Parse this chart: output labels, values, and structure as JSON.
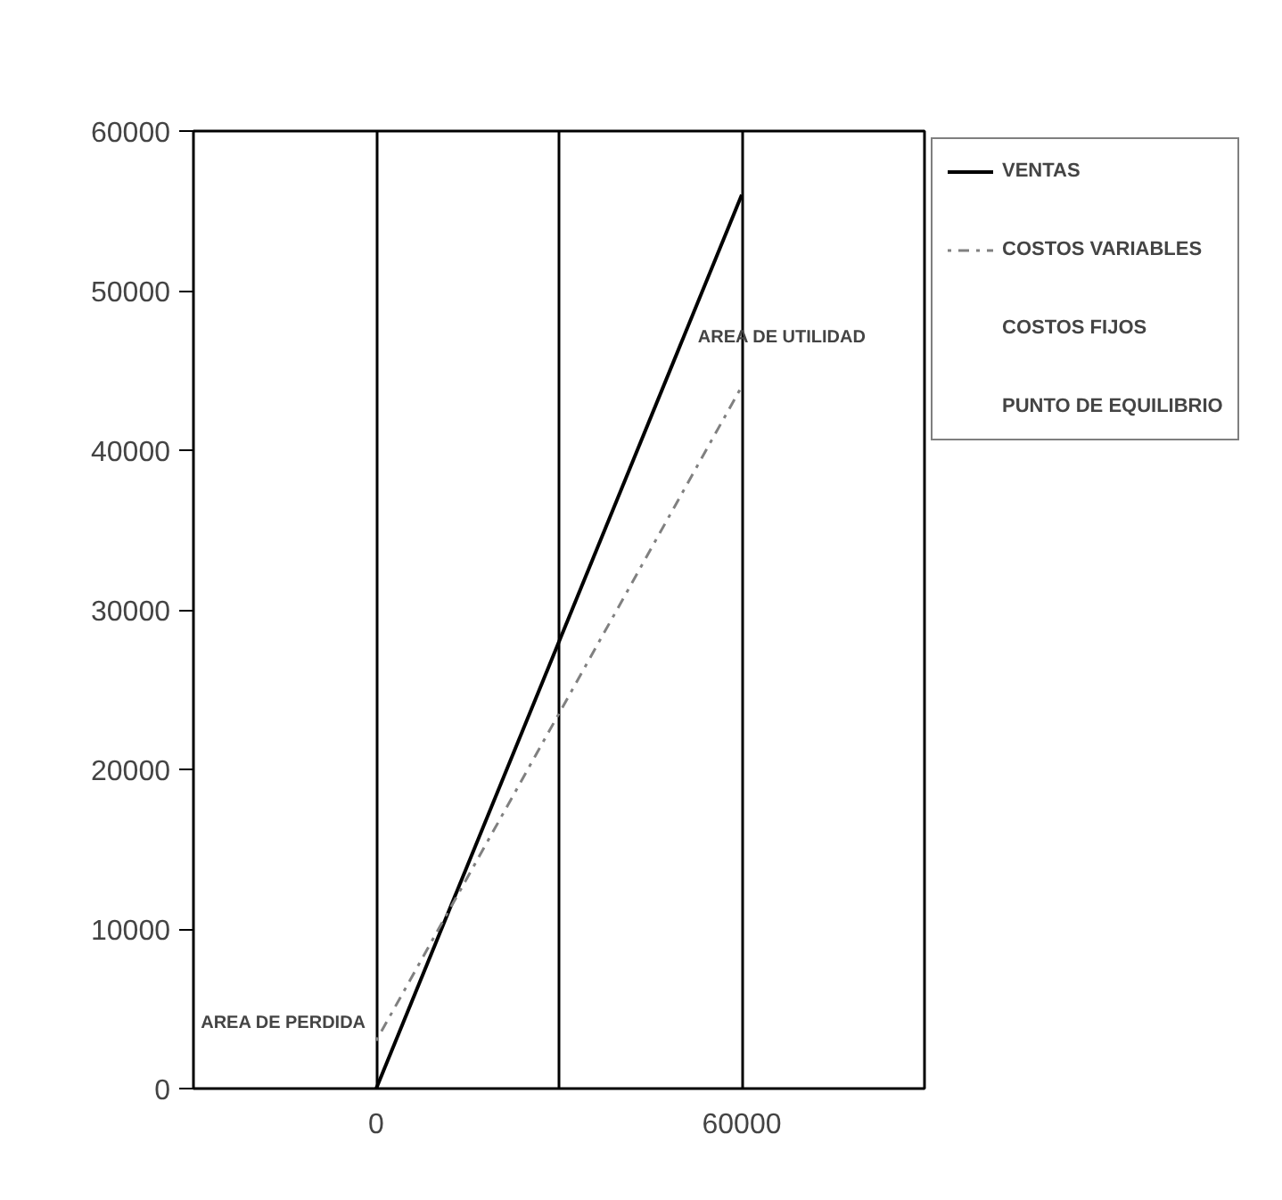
{
  "chart_data": {
    "type": "line",
    "x": [
      0,
      60000
    ],
    "series": [
      {
        "name": "VENTAS",
        "color": "#000000",
        "values": [
          0,
          56000
        ],
        "line_style": "solid"
      },
      {
        "name": "COSTOS VARIABLES",
        "color": "#808080",
        "values": [
          3000,
          44000
        ],
        "line_style": "dotted"
      },
      {
        "name": "COSTOS FIJOS",
        "values": [
          null,
          null
        ]
      },
      {
        "name": "PUNTO DE EQUILIBRIO",
        "values": [
          null,
          null
        ]
      }
    ],
    "xlim": [
      -30000,
      90000
    ],
    "xticks": [
      0,
      {
        "value": 30000,
        "label": null
      },
      60000
    ],
    "ylim": [
      0,
      60000
    ],
    "yticks": [
      0,
      10000,
      20000,
      30000,
      40000,
      50000,
      60000
    ],
    "grid": "x",
    "legend": "right",
    "marker": "none",
    "annotations": [
      "AREA DE UTILIDAD",
      "AREA DE PERDIDA"
    ]
  }
}
